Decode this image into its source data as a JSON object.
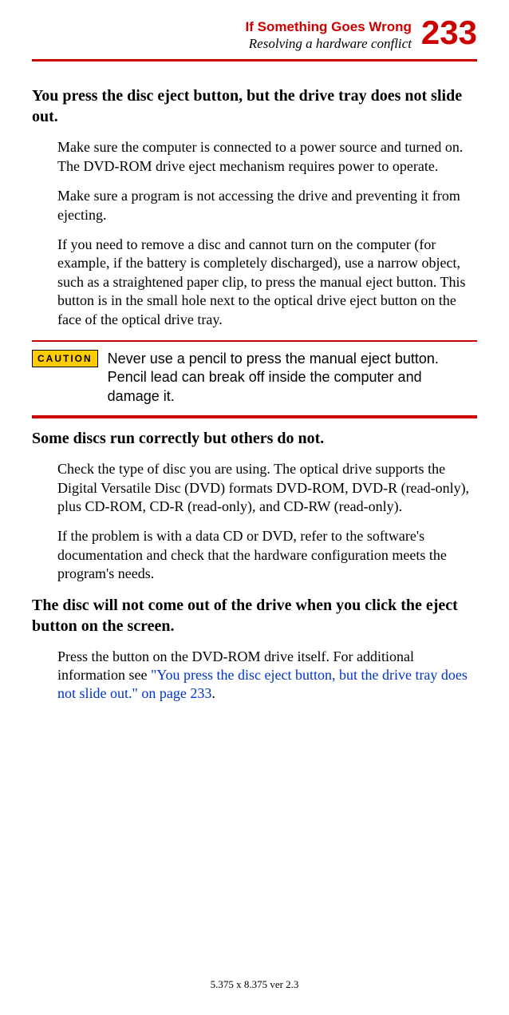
{
  "header": {
    "title": "If Something Goes Wrong",
    "subtitle": "Resolving a hardware conflict",
    "page_number": "233",
    "title_color": "#cc0000",
    "title_fontsize": 17,
    "subtitle_fontsize": 17,
    "page_number_fontsize": 42,
    "rule_color": "#cc0000"
  },
  "sections": [
    {
      "heading": "You press the disc eject button, but the drive tray does not slide out.",
      "paragraphs": [
        "Make sure the computer is connected to a power source and turned on. The DVD-ROM drive eject mechanism requires power to operate.",
        "Make sure a program is not accessing the drive and preventing it from ejecting.",
        "If you need to remove a disc and cannot turn on the computer (for example, if the battery is completely discharged), use a narrow object, such as a straightened paper clip, to press the manual eject button. This button is in the small hole next to the optical drive eject button on the face of the optical drive tray."
      ]
    }
  ],
  "caution": {
    "label": "CAUTION",
    "text": "Never use a pencil to press the manual eject button. Pencil lead can break off inside the computer and damage it.",
    "badge_bg": "#ffcc00",
    "badge_border": "#000000",
    "rule_color": "#cc0000"
  },
  "sections2": [
    {
      "heading": "Some discs run correctly but others do not.",
      "paragraphs": [
        "Check the type of disc you are using. The optical drive supports the Digital Versatile Disc (DVD) formats DVD-ROM, DVD-R (read-only), plus CD-ROM, CD-R (read-only), and CD-RW (read-only).",
        "If the problem is with a data CD or DVD, refer to the software's documentation and check that the hardware configuration meets the program's needs."
      ]
    },
    {
      "heading": "The disc will not come out of the drive when you click the eject button on the screen.",
      "paragraphs": []
    }
  ],
  "final_para": {
    "prefix": "Press the button on the DVD-ROM drive itself. For additional information see ",
    "link_text": "\"You press the disc eject button, but the drive tray does not slide out.\" on page 233",
    "suffix": ".",
    "link_color": "#0033cc"
  },
  "footer": {
    "text": "5.375 x 8.375 ver 2.3"
  },
  "typography": {
    "body_fontsize": 18,
    "heading_fontsize": 20,
    "footer_fontsize": 13,
    "caution_text_fontsize": 18,
    "body_font": "Georgia, Times New Roman, serif",
    "sans_font": "Arial, Helvetica, sans-serif"
  },
  "colors": {
    "background": "#ffffff",
    "text": "#000000",
    "accent": "#cc0000",
    "link": "#0033cc",
    "caution_bg": "#ffcc00"
  }
}
